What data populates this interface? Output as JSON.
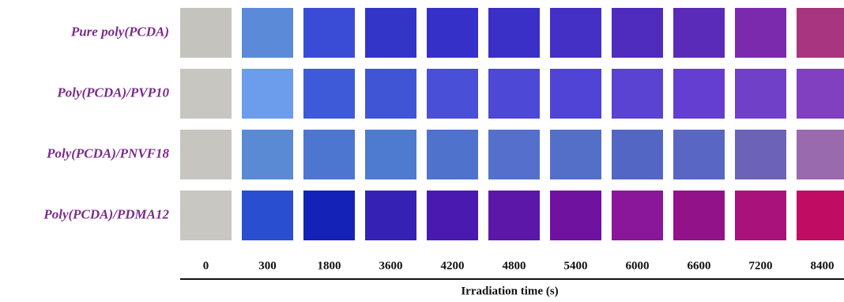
{
  "figure": {
    "x_label": "Irradiation time (s)",
    "columns": [
      0,
      300,
      1800,
      3600,
      4200,
      4800,
      5400,
      6000,
      6600,
      7200,
      8400
    ],
    "rows": [
      {
        "label": "Pure poly(PCDA)",
        "colors": [
          "#c5c3bd",
          "#5b8ad8",
          "#3a4cd6",
          "#3334c8",
          "#3530c8",
          "#3a2fc6",
          "#4530c6",
          "#4f2cbe",
          "#5a2ab8",
          "#7b2aae",
          "#a8357f"
        ]
      },
      {
        "label": "Poly(PCDA)/PVP10",
        "colors": [
          "#c7c6c0",
          "#6c9cec",
          "#3f5ad8",
          "#3f55d6",
          "#4a4fd8",
          "#4e48d6",
          "#5044d6",
          "#5a42d2",
          "#633ed0",
          "#7040c8",
          "#8040c0"
        ]
      },
      {
        "label": "Poly(PCDA)/PNVF18",
        "colors": [
          "#c6c5bf",
          "#5a8ad4",
          "#4d76d0",
          "#4e7ad0",
          "#4f72cc",
          "#5470cc",
          "#546fc8",
          "#5466c4",
          "#5966c4",
          "#6c62b8",
          "#9a6aae"
        ]
      },
      {
        "label": "Poly(PCDA)/PDMA12",
        "colors": [
          "#c8c7c1",
          "#2a4ed0",
          "#1522b8",
          "#3522b4",
          "#4a1ab0",
          "#5c16a8",
          "#7012a0",
          "#8a169a",
          "#92128a",
          "#a8127a",
          "#c00c62"
        ]
      }
    ]
  }
}
